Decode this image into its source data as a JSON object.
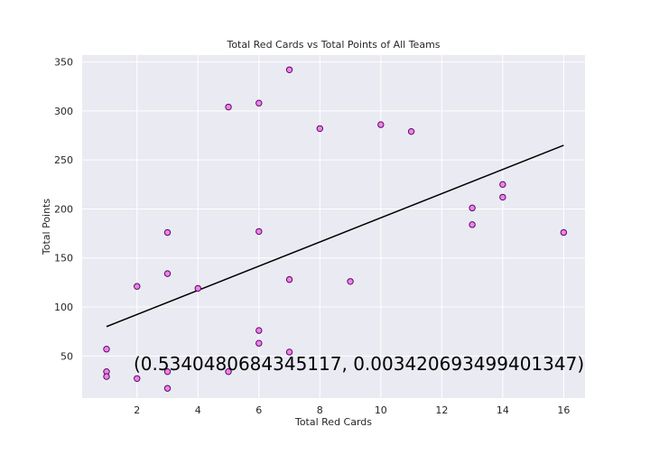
{
  "chart_data": {
    "type": "scatter",
    "title": "Total Red Cards vs Total Points of All Teams",
    "xlabel": "Total Red Cards",
    "ylabel": "Total Points",
    "xlim": [
      0.2,
      16.7
    ],
    "ylim": [
      7,
      357
    ],
    "x_ticks": [
      2,
      4,
      6,
      8,
      10,
      12,
      14,
      16
    ],
    "y_ticks": [
      50,
      100,
      150,
      200,
      250,
      300,
      350
    ],
    "grid": true,
    "annotation": "(0.5340480684345117, 0.003420693499401347)",
    "points": [
      {
        "x": 1,
        "y": 57
      },
      {
        "x": 1,
        "y": 34
      },
      {
        "x": 1,
        "y": 29
      },
      {
        "x": 2,
        "y": 121
      },
      {
        "x": 2,
        "y": 27
      },
      {
        "x": 3,
        "y": 176
      },
      {
        "x": 3,
        "y": 134
      },
      {
        "x": 3,
        "y": 34
      },
      {
        "x": 3,
        "y": 17
      },
      {
        "x": 4,
        "y": 119
      },
      {
        "x": 5,
        "y": 304
      },
      {
        "x": 5,
        "y": 34
      },
      {
        "x": 6,
        "y": 308
      },
      {
        "x": 6,
        "y": 177
      },
      {
        "x": 6,
        "y": 76
      },
      {
        "x": 6,
        "y": 63
      },
      {
        "x": 7,
        "y": 342
      },
      {
        "x": 7,
        "y": 128
      },
      {
        "x": 7,
        "y": 54
      },
      {
        "x": 8,
        "y": 282
      },
      {
        "x": 9,
        "y": 126
      },
      {
        "x": 10,
        "y": 286
      },
      {
        "x": 11,
        "y": 279
      },
      {
        "x": 13,
        "y": 201
      },
      {
        "x": 13,
        "y": 184
      },
      {
        "x": 14,
        "y": 225
      },
      {
        "x": 14,
        "y": 212
      },
      {
        "x": 16,
        "y": 176
      }
    ],
    "trendline": {
      "x": [
        1,
        16
      ],
      "y": [
        80,
        265
      ]
    },
    "colors": {
      "background": "#eaeaf2",
      "grid": "#ffffff",
      "marker_fill": "#ee82ee",
      "marker_edge": "#5a0a5a",
      "trendline": "#000000"
    }
  }
}
